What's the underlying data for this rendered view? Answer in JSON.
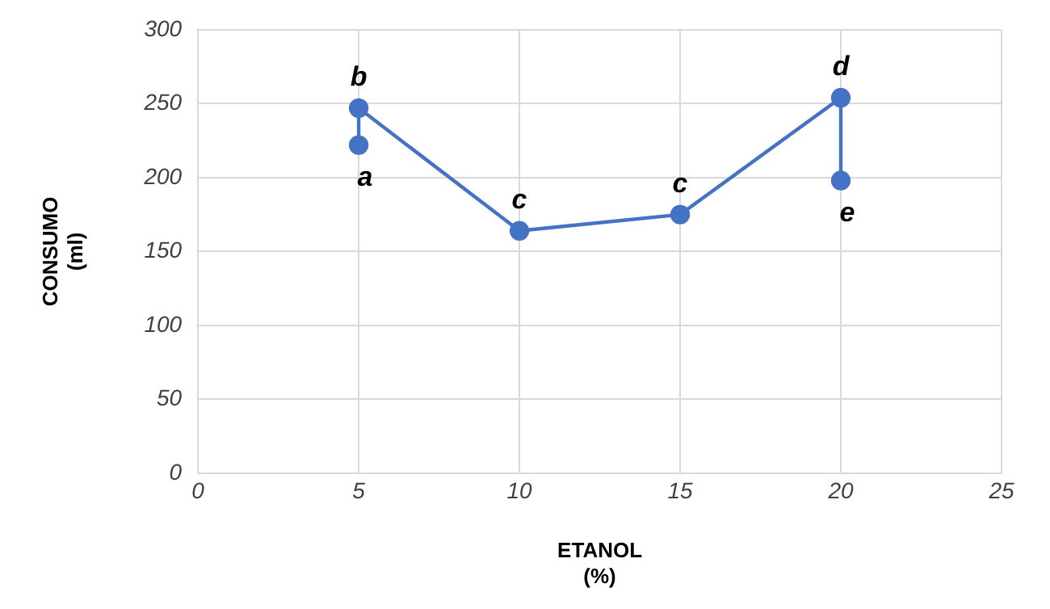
{
  "chart_data": {
    "type": "line",
    "xlabel": "ETANOL\n(%)",
    "ylabel": "CONSUMO\n(ml)",
    "x": [
      5,
      5,
      10,
      15,
      20,
      20
    ],
    "series": [
      {
        "color": "#4472c4",
        "values": [
          222,
          247,
          164,
          175,
          254,
          198
        ]
      }
    ],
    "xlim": [
      0,
      25
    ],
    "xticks": [
      0,
      5,
      10,
      15,
      20,
      25
    ],
    "ylim": [
      0,
      300
    ],
    "yticks": [
      0,
      50,
      100,
      150,
      200,
      250,
      300
    ],
    "grid": true,
    "legend": false,
    "marker": "circle",
    "line_style": "solid",
    "annotations": [
      {
        "text": "a",
        "x": 5,
        "y": 222
      },
      {
        "text": "b",
        "x": 5,
        "y": 247
      },
      {
        "text": "c",
        "x": 10,
        "y": 164
      },
      {
        "text": "c",
        "x": 15,
        "y": 175
      },
      {
        "text": "d",
        "x": 20,
        "y": 254
      },
      {
        "text": "e",
        "x": 20,
        "y": 198
      }
    ]
  }
}
